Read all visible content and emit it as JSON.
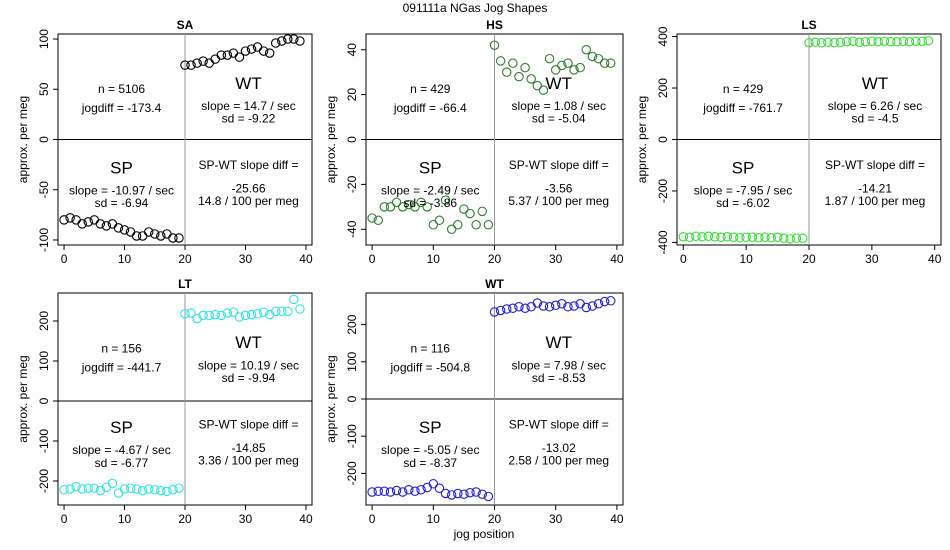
{
  "figure": {
    "title": "091111a    NGas Jog Shapes",
    "xlabel": "jog position",
    "ylabel": "approx. per meg"
  },
  "chart_data": [
    {
      "type": "scatter",
      "title": "SA",
      "color": "#000000",
      "xlim": [
        -1,
        41
      ],
      "ylim": [
        -105,
        105
      ],
      "xticks": [
        0,
        10,
        20,
        30,
        40
      ],
      "yticks": [
        -100,
        -50,
        0,
        50,
        100
      ],
      "series": [
        {
          "x": [
            0,
            1,
            2,
            3,
            4,
            5,
            6,
            7,
            8,
            9,
            10,
            11,
            12,
            13,
            14,
            15,
            16,
            17,
            18,
            19
          ],
          "y": [
            -80,
            -78,
            -80,
            -84,
            -82,
            -80,
            -84,
            -86,
            -84,
            -88,
            -90,
            -92,
            -96,
            -96,
            -92,
            -94,
            -96,
            -94,
            -98,
            -98
          ]
        },
        {
          "x": [
            20,
            21,
            22,
            23,
            24,
            25,
            26,
            27,
            28,
            29,
            30,
            31,
            32,
            33,
            34,
            35,
            36,
            37,
            38,
            39
          ],
          "y": [
            74,
            74,
            76,
            78,
            76,
            80,
            84,
            84,
            86,
            82,
            88,
            90,
            92,
            88,
            86,
            96,
            98,
            100,
            100,
            98
          ]
        }
      ],
      "labels": {
        "n": "n = 5106",
        "jogdiff": "jogdiff = -173.4",
        "wt_title": "WT",
        "wt_slope": "slope = 14.7 / sec",
        "wt_sd": "sd = -9.22",
        "sp_title": "SP",
        "sp_slope": "slope = -10.97 / sec",
        "sp_sd": "sd = -6.94",
        "diff_title": "SP-WT slope diff =",
        "diff_val": "-25.66",
        "diff_rate": "14.8 / 100 per meg"
      }
    },
    {
      "type": "scatter",
      "title": "HS",
      "color": "#2e7d2e",
      "xlim": [
        -1,
        41
      ],
      "ylim": [
        -47,
        47
      ],
      "xticks": [
        0,
        10,
        20,
        30,
        40
      ],
      "yticks": [
        -40,
        -20,
        0,
        20,
        40
      ],
      "series": [
        {
          "x": [
            0,
            1,
            2,
            3,
            4,
            5,
            6,
            7,
            8,
            9,
            10,
            11,
            12,
            13,
            14,
            15,
            16,
            17,
            18,
            19
          ],
          "y": [
            -35,
            -36,
            -30,
            -30,
            -28,
            -30,
            -29,
            -30,
            -28,
            -30,
            -38,
            -36,
            -27,
            -40,
            -38,
            -31,
            -33,
            -38,
            -32,
            -38
          ]
        },
        {
          "x": [
            20,
            21,
            22,
            23,
            24,
            25,
            26,
            27,
            28,
            29,
            30,
            31,
            32,
            33,
            34,
            35,
            36,
            37,
            38,
            39
          ],
          "y": [
            42,
            35,
            30,
            34,
            28,
            32,
            27,
            24,
            22,
            36,
            31,
            33,
            34,
            31,
            32,
            40,
            37,
            36,
            34,
            34
          ]
        }
      ],
      "labels": {
        "n": "n = 429",
        "jogdiff": "jogdiff = -66.4",
        "wt_title": "WT",
        "wt_slope": "slope = 1.08 / sec",
        "wt_sd": "sd = -5.04",
        "sp_title": "SP",
        "sp_slope": "slope = -2.49 / sec",
        "sp_sd": "sd = -3.86",
        "diff_title": "SP-WT slope diff =",
        "diff_val": "-3.56",
        "diff_rate": "5.37 / 100 per meg"
      }
    },
    {
      "type": "scatter",
      "title": "LS",
      "color": "#33dd33",
      "xlim": [
        -1,
        41
      ],
      "ylim": [
        -410,
        410
      ],
      "xticks": [
        0,
        10,
        20,
        30,
        40
      ],
      "yticks": [
        -400,
        -200,
        0,
        200,
        400
      ],
      "series": [
        {
          "x": [
            0,
            1,
            2,
            3,
            4,
            5,
            6,
            7,
            8,
            9,
            10,
            11,
            12,
            13,
            14,
            15,
            16,
            17,
            18,
            19
          ],
          "y": [
            -378,
            -380,
            -376,
            -378,
            -376,
            -378,
            -380,
            -378,
            -380,
            -382,
            -380,
            -380,
            -382,
            -380,
            -382,
            -380,
            -384,
            -386,
            -384,
            -384
          ]
        },
        {
          "x": [
            20,
            21,
            22,
            23,
            24,
            25,
            26,
            27,
            28,
            29,
            30,
            31,
            32,
            33,
            34,
            35,
            36,
            37,
            38,
            39
          ],
          "y": [
            376,
            378,
            376,
            378,
            376,
            378,
            380,
            382,
            378,
            380,
            382,
            380,
            382,
            380,
            380,
            382,
            380,
            382,
            382,
            384
          ]
        }
      ],
      "labels": {
        "n": "n = 429",
        "jogdiff": "jogdiff = -761.7",
        "wt_title": "WT",
        "wt_slope": "slope = 6.26 / sec",
        "wt_sd": "sd = -4.5",
        "sp_title": "SP",
        "sp_slope": "slope = -7.95 / sec",
        "sp_sd": "sd = -6.02",
        "diff_title": "SP-WT slope diff =",
        "diff_val": "-14.21",
        "diff_rate": "1.87 / 100 per meg"
      }
    },
    {
      "type": "scatter",
      "title": "LT",
      "color": "#33e5e5",
      "xlim": [
        -1,
        41
      ],
      "ylim": [
        -260,
        270
      ],
      "xticks": [
        0,
        10,
        20,
        30,
        40
      ],
      "yticks": [
        -200,
        -100,
        0,
        100,
        200
      ],
      "series": [
        {
          "x": [
            0,
            1,
            2,
            3,
            4,
            5,
            6,
            7,
            8,
            9,
            10,
            11,
            12,
            13,
            14,
            15,
            16,
            17,
            18,
            19
          ],
          "y": [
            -222,
            -220,
            -214,
            -220,
            -218,
            -218,
            -224,
            -216,
            -206,
            -230,
            -220,
            -218,
            -220,
            -224,
            -220,
            -222,
            -224,
            -226,
            -222,
            -218
          ]
        },
        {
          "x": [
            20,
            21,
            22,
            23,
            24,
            25,
            26,
            27,
            28,
            29,
            30,
            31,
            32,
            33,
            34,
            35,
            36,
            37,
            38,
            39
          ],
          "y": [
            218,
            220,
            206,
            214,
            214,
            216,
            214,
            220,
            222,
            210,
            214,
            216,
            218,
            222,
            216,
            224,
            224,
            224,
            254,
            230
          ]
        }
      ],
      "labels": {
        "n": "n = 156",
        "jogdiff": "jogdiff = -441.7",
        "wt_title": "WT",
        "wt_slope": "slope = 10.19 / sec",
        "wt_sd": "sd = -9.94",
        "sp_title": "SP",
        "sp_slope": "slope = -4.67 / sec",
        "sp_sd": "sd = -6.77",
        "diff_title": "SP-WT slope diff =",
        "diff_val": "-14.85",
        "diff_rate": "3.36 / 100 per meg"
      }
    },
    {
      "type": "scatter",
      "title": "WT",
      "color": "#2020cc",
      "xlim": [
        -1,
        41
      ],
      "ylim": [
        -285,
        285
      ],
      "xticks": [
        0,
        10,
        20,
        30,
        40
      ],
      "yticks": [
        -200,
        -100,
        0,
        100,
        200
      ],
      "series": [
        {
          "x": [
            0,
            1,
            2,
            3,
            4,
            5,
            6,
            7,
            8,
            9,
            10,
            11,
            12,
            13,
            14,
            15,
            16,
            17,
            18,
            19
          ],
          "y": [
            -250,
            -248,
            -248,
            -250,
            -246,
            -250,
            -244,
            -248,
            -244,
            -238,
            -228,
            -240,
            -254,
            -258,
            -254,
            -256,
            -252,
            -250,
            -256,
            -262
          ]
        },
        {
          "x": [
            20,
            21,
            22,
            23,
            24,
            25,
            26,
            27,
            28,
            29,
            30,
            31,
            32,
            33,
            34,
            35,
            36,
            37,
            38,
            39
          ],
          "y": [
            234,
            238,
            242,
            244,
            248,
            244,
            248,
            258,
            250,
            248,
            252,
            256,
            248,
            250,
            256,
            246,
            250,
            256,
            262,
            264
          ]
        }
      ],
      "labels": {
        "n": "n = 116",
        "jogdiff": "jogdiff = -504.8",
        "wt_title": "WT",
        "wt_slope": "slope = 7.98 / sec",
        "wt_sd": "sd = -8.53",
        "sp_title": "SP",
        "sp_slope": "slope = -5.05 / sec",
        "sp_sd": "sd = -8.37",
        "diff_title": "SP-WT slope diff =",
        "diff_val": "-13.02",
        "diff_rate": "2.58 / 100 per meg"
      }
    }
  ]
}
